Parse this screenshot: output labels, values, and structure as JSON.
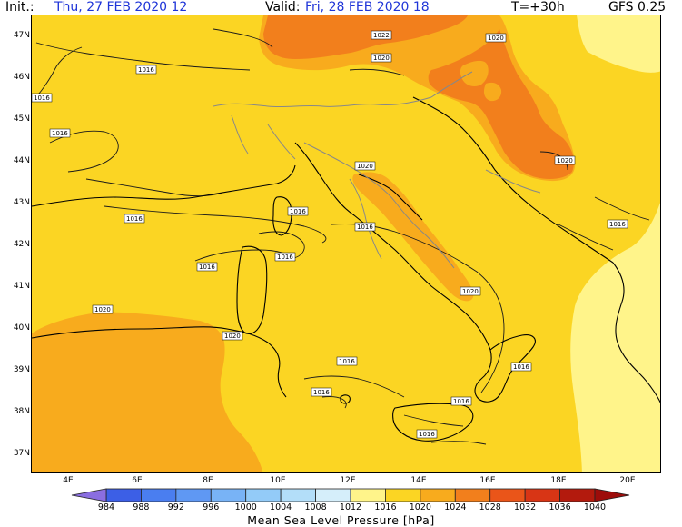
{
  "header": {
    "init_label": "Init.:",
    "init_value": "Thu, 27 FEB 2020  12",
    "valid_label": "Valid:",
    "valid_value": "Fri, 28 FEB 2020  18",
    "step": "T=+30h",
    "model": "GFS 0.25"
  },
  "lat_ticks": [
    "47N",
    "46N",
    "45N",
    "44N",
    "43N",
    "42N",
    "41N",
    "40N",
    "39N",
    "38N",
    "37N"
  ],
  "lon_ticks": [
    "4E",
    "6E",
    "8E",
    "10E",
    "12E",
    "14E",
    "16E",
    "18E",
    "20E"
  ],
  "isobar_labels": {
    "l1016a": "1016",
    "l1016b": "1016",
    "l1016c": "1016",
    "l1016d": "1016",
    "l1016e": "1016",
    "l1016f": "1016",
    "l1016g": "1016",
    "l1016h": "1016",
    "l1016i": "1016",
    "l1016j": "1016",
    "l1016k": "1016",
    "l1016l": "1016",
    "l1016m": "1016",
    "l1016n": "1016",
    "l1020a": "1020",
    "l1020b": "1020",
    "l1020c": "1020",
    "l1020d": "1020",
    "l1020e": "1020",
    "l1020f": "1020",
    "l1020g": "1020",
    "l1022": "1022"
  },
  "colorbar": {
    "ticks": [
      "984",
      "988",
      "992",
      "996",
      "1000",
      "1004",
      "1008",
      "1012",
      "1016",
      "1020",
      "1024",
      "1028",
      "1032",
      "1036",
      "1040"
    ],
    "colors": [
      "#3c5fe6",
      "#4a7ef0",
      "#5f98f3",
      "#78b3f6",
      "#93cbf8",
      "#b3def9",
      "#d5eefa",
      "#fff48a",
      "#fbd523",
      "#f8ab1d",
      "#f27f1c",
      "#ea5519",
      "#d83515",
      "#b31a0d"
    ],
    "left_arrow_color": "#8a6ee0",
    "right_arrow_color": "#9d0c0a",
    "title": "Mean Sea Level Pressure [hPa]"
  },
  "map_colors": {
    "band_1012_1016": "#fff48a",
    "band_1016_1020": "#fbd523",
    "band_1020_1024": "#f8ab1d",
    "band_1024_1028": "#f27f1c",
    "coast": "#000000",
    "border": "#888888"
  }
}
